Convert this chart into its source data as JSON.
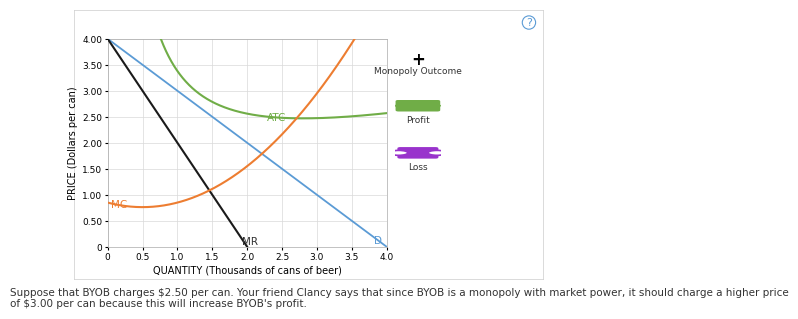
{
  "xlabel": "QUANTITY (Thousands of cans of beer)",
  "ylabel": "PRICE (Dollars per can)",
  "xlim": [
    0,
    4.0
  ],
  "ylim": [
    0,
    4.0
  ],
  "xticks": [
    0,
    0.5,
    1.0,
    1.5,
    2.0,
    2.5,
    3.0,
    3.5,
    4.0
  ],
  "ytick_vals": [
    0,
    0.5,
    1.0,
    1.5,
    2.0,
    2.5,
    3.0,
    3.5,
    4.0
  ],
  "ytick_labels": [
    "0",
    "0.50",
    "1.00",
    "1.50",
    "2.00",
    "2.50",
    "3.00",
    "3.50",
    "4.00"
  ],
  "demand_color": "#5b9bd5",
  "mr_color": "#1a1a1a",
  "atc_color": "#70ad47",
  "mc_color": "#ed7d31",
  "legend_profit_color": "#70ad47",
  "legend_loss_color": "#9933cc",
  "bg_color": "#ffffff",
  "outer_bg": "#ffffff",
  "grid_color": "#d9d9d9",
  "caption": "Suppose that BYOB charges $2.50 per can. Your friend Clancy says that since BYOB is a monopoly with market power, it should charge a higher price\nof $3.00 per can because this will increase BYOB's profit.",
  "caption_fontsize": 7.5,
  "label_fontsize": 7,
  "tick_fontsize": 6.5,
  "curve_label_fontsize": 7.5
}
